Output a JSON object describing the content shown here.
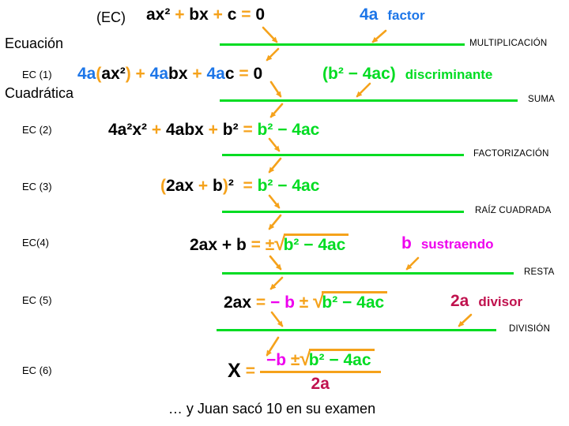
{
  "colors": {
    "orange": "#f5a21b",
    "blue": "#1d76e8",
    "green": "#00dc22",
    "magenta": "#ee00ee",
    "crimson": "#c0124e"
  },
  "title": {
    "line1": "Ecuación",
    "line2": "Cuadrática"
  },
  "ec_tag": "(EC)",
  "row_labels": [
    "EC (1)",
    "EC (2)",
    "EC (3)",
    "EC(4)",
    "EC (5)",
    "EC (6)"
  ],
  "operation_labels": [
    "MULTIPLICACIÓN",
    "SUMA",
    "FACTORIZACIÓN",
    "RAÍZ CUADRADA",
    "RESTA",
    "DIVISIÓN"
  ],
  "annotations": {
    "factor": {
      "value": "4a",
      "label": "factor"
    },
    "discriminante": {
      "value": "(b² − 4ac)",
      "label": "discriminante"
    },
    "sustraendo": {
      "value": "b",
      "label": "sustraendo"
    },
    "divisor": {
      "value": "2a",
      "label": "divisor"
    }
  },
  "equations": {
    "top": [
      {
        "t": "ax² ",
        "c": "k"
      },
      {
        "t": "+ ",
        "c": "o"
      },
      {
        "t": "bx ",
        "c": "k"
      },
      {
        "t": "+ ",
        "c": "o"
      },
      {
        "t": "c ",
        "c": "k"
      },
      {
        "t": "= ",
        "c": "o"
      },
      {
        "t": "0",
        "c": "k"
      }
    ],
    "ec1": [
      {
        "t": "4a",
        "c": "b"
      },
      {
        "t": "(",
        "c": "o"
      },
      {
        "t": "ax²",
        "c": "k"
      },
      {
        "t": ") + ",
        "c": "o"
      },
      {
        "t": "4a",
        "c": "b"
      },
      {
        "t": "bx ",
        "c": "k"
      },
      {
        "t": "+ ",
        "c": "o"
      },
      {
        "t": "4a",
        "c": "b"
      },
      {
        "t": "c ",
        "c": "k"
      },
      {
        "t": "= ",
        "c": "o"
      },
      {
        "t": "0",
        "c": "k"
      }
    ],
    "ec2": [
      {
        "t": "4a²x² ",
        "c": "k"
      },
      {
        "t": "+ ",
        "c": "o"
      },
      {
        "t": "4abx ",
        "c": "k"
      },
      {
        "t": "+ ",
        "c": "o"
      },
      {
        "t": "b² ",
        "c": "k"
      },
      {
        "t": "= ",
        "c": "o"
      },
      {
        "t": "b² − 4ac",
        "c": "g"
      }
    ],
    "ec3": [
      {
        "t": "(",
        "c": "o"
      },
      {
        "t": "2ax ",
        "c": "k"
      },
      {
        "t": "+ ",
        "c": "o"
      },
      {
        "t": "b",
        "c": "k"
      },
      {
        "t": ")",
        "c": "o"
      },
      {
        "t": "²",
        "c": "k"
      },
      {
        "t": "  = ",
        "c": "o"
      },
      {
        "t": "b² − 4ac",
        "c": "g"
      }
    ],
    "ec4": [
      {
        "t": "2ax + b ",
        "c": "k"
      },
      {
        "t": "= ",
        "c": "o"
      },
      {
        "t": "±",
        "c": "o"
      },
      {
        "t": "√",
        "c": "o",
        "cls": "rad"
      },
      {
        "t": "b² − 4ac",
        "c": "g",
        "ol": true
      }
    ],
    "ec5": [
      {
        "t": "2ax ",
        "c": "k"
      },
      {
        "t": "= ",
        "c": "o"
      },
      {
        "t": "− b ",
        "c": "m"
      },
      {
        "t": "± ",
        "c": "o"
      },
      {
        "t": "√",
        "c": "o",
        "cls": "rad"
      },
      {
        "t": "b² − 4ac",
        "c": "g",
        "ol": true
      }
    ],
    "ec6_lhs": "X",
    "ec6_equals": "=",
    "ec6_num": [
      {
        "t": "−b ",
        "c": "m"
      },
      {
        "t": "±",
        "c": "o"
      },
      {
        "t": "√",
        "c": "o",
        "cls": "rad"
      },
      {
        "t": "b² − 4ac",
        "c": "g",
        "ol": true
      }
    ],
    "ec6_den": "2a"
  },
  "footer": "… y Juan sacó 10 en su examen"
}
